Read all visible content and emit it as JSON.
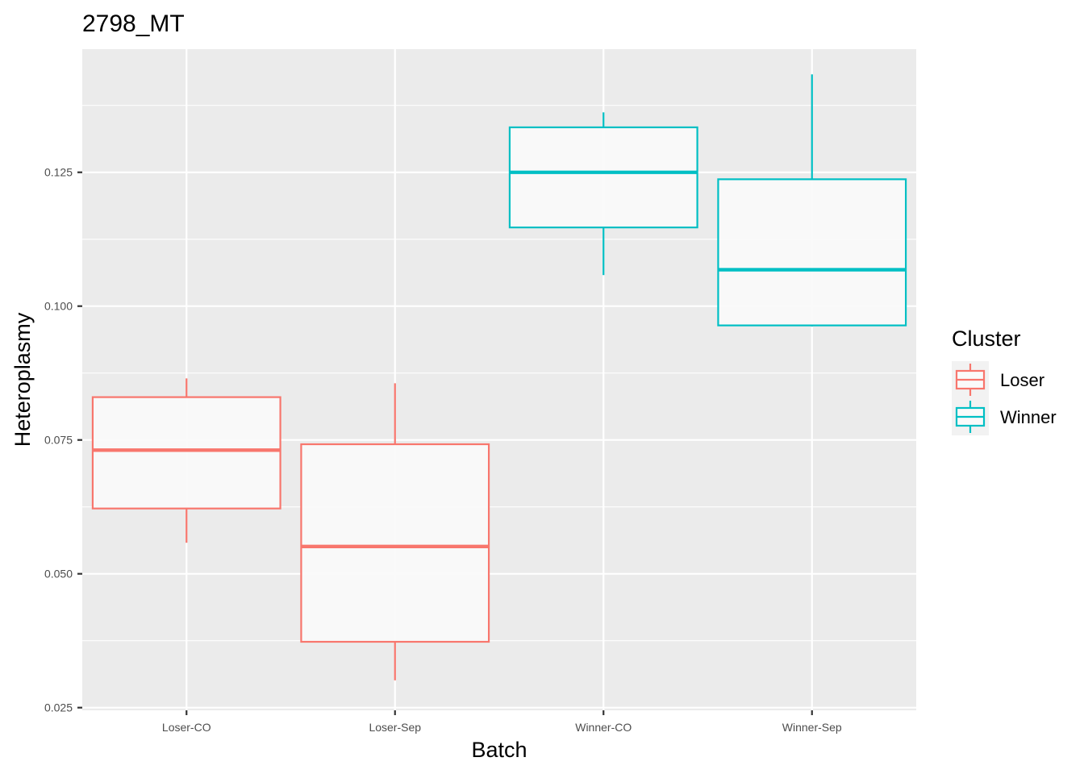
{
  "chart_data": {
    "type": "boxplot",
    "title": "2798_MT",
    "xlabel": "Batch",
    "ylabel": "Heteroplasmy",
    "categories": [
      "Loser-CO",
      "Loser-Sep",
      "Winner-CO",
      "Winner-Sep"
    ],
    "yticks": [
      "0.025",
      "0.050",
      "0.075",
      "0.100",
      "0.125"
    ],
    "ylim": [
      0.0245,
      0.148
    ],
    "grid": true,
    "legend": {
      "title": "Cluster",
      "placement": "right",
      "entries": [
        {
          "name": "Loser",
          "color": "#F8766D"
        },
        {
          "name": "Winner",
          "color": "#00BFC4"
        }
      ]
    },
    "boxes": [
      {
        "category": "Loser-CO",
        "cluster": "Loser",
        "whisker_low": 0.0558,
        "q1": 0.0622,
        "median": 0.0731,
        "q3": 0.083,
        "whisker_high": 0.0865
      },
      {
        "category": "Loser-Sep",
        "cluster": "Loser",
        "whisker_low": 0.0301,
        "q1": 0.0373,
        "median": 0.0551,
        "q3": 0.0742,
        "whisker_high": 0.0856
      },
      {
        "category": "Winner-CO",
        "cluster": "Winner",
        "whisker_low": 0.1058,
        "q1": 0.1147,
        "median": 0.125,
        "q3": 0.1334,
        "whisker_high": 0.1362
      },
      {
        "category": "Winner-Sep",
        "cluster": "Winner",
        "whisker_low": 0.0962,
        "q1": 0.0964,
        "median": 0.1068,
        "q3": 0.1237,
        "whisker_high": 0.1433
      }
    ]
  },
  "colors": {
    "panel_bg": "#EBEBEB",
    "grid_line": "#FFFFFF",
    "box_fill": "#FAFAFA",
    "axis_text": "#4D4D4D",
    "tick_line": "#333333",
    "legend_key_bg": "#F2F2F2"
  }
}
